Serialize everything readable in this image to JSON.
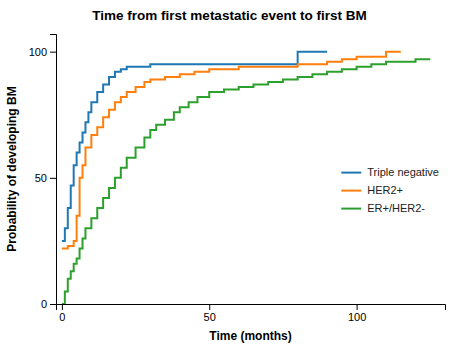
{
  "chart_data": {
    "type": "step",
    "title": "Time from first metastatic event to first BM",
    "x_label": "Time (months)",
    "y_label": "Probability of developing BM",
    "xlim": [
      -2,
      130
    ],
    "ylim": [
      0,
      107
    ],
    "xticks": [
      0,
      50,
      100
    ],
    "yticks": [
      0,
      50,
      100
    ],
    "grid": false,
    "legend": "right",
    "series": [
      {
        "name": "Triple negative",
        "x": [
          0,
          1,
          2,
          3,
          4,
          5,
          6,
          7,
          8,
          9,
          10,
          12,
          14,
          16,
          18,
          20,
          22,
          25,
          28,
          30,
          35,
          40,
          75,
          80,
          90
        ],
        "values": [
          25,
          30,
          38,
          47,
          55,
          60,
          64,
          68,
          72,
          76,
          80,
          84,
          87,
          90,
          92,
          93,
          94,
          94,
          94,
          95,
          95,
          95,
          95,
          100,
          100
        ]
      },
      {
        "name": "HER2+",
        "x": [
          0,
          2,
          4,
          5,
          6,
          7,
          8,
          10,
          12,
          14,
          16,
          18,
          20,
          22,
          25,
          28,
          30,
          35,
          40,
          45,
          50,
          55,
          60,
          65,
          70,
          80,
          85,
          90,
          95,
          100,
          110,
          115
        ],
        "values": [
          22,
          23,
          25,
          35,
          50,
          55,
          62,
          67,
          70,
          74,
          77,
          80,
          82,
          84,
          86,
          88,
          89,
          90,
          91,
          92,
          93,
          93,
          94,
          94,
          94,
          95,
          95,
          96,
          97,
          98,
          100,
          100
        ]
      },
      {
        "name": "ER+/HER2-",
        "x": [
          0,
          1,
          2,
          3,
          4,
          5,
          6,
          7,
          8,
          10,
          12,
          14,
          16,
          18,
          20,
          22,
          25,
          28,
          30,
          32,
          35,
          38,
          40,
          43,
          46,
          50,
          55,
          60,
          65,
          70,
          75,
          80,
          85,
          90,
          95,
          100,
          105,
          110,
          115,
          120,
          125
        ],
        "values": [
          0,
          5,
          10,
          13,
          16,
          18,
          22,
          26,
          30,
          34,
          38,
          42,
          46,
          50,
          54,
          58,
          62,
          66,
          69,
          71,
          73,
          76,
          78,
          80,
          82,
          84,
          85,
          86,
          87,
          88,
          89,
          90,
          91,
          92,
          93,
          94,
          95,
          96,
          96,
          97,
          97
        ]
      }
    ]
  }
}
